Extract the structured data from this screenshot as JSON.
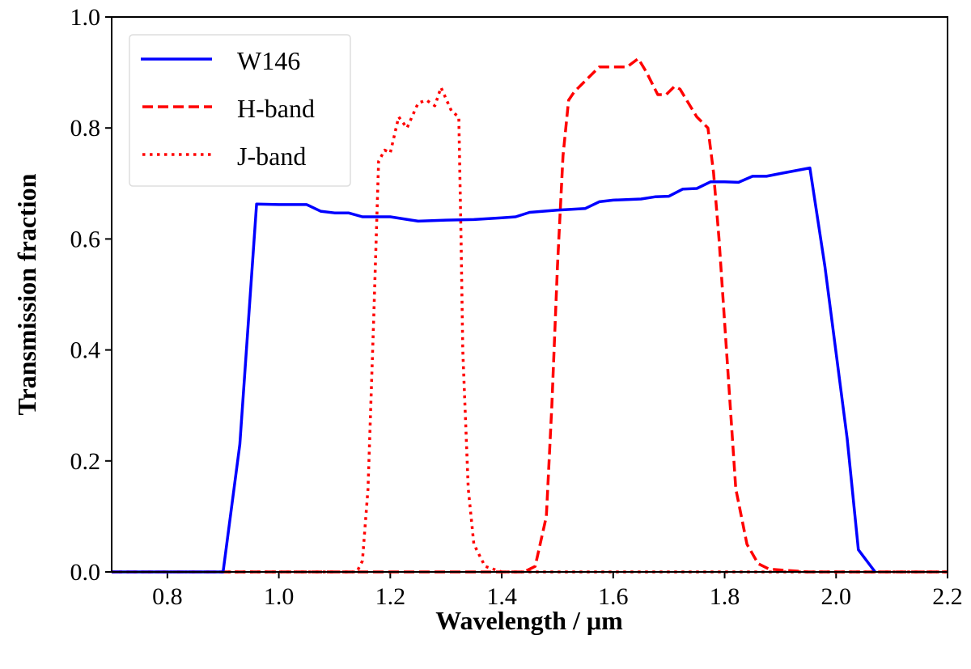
{
  "chart_data": {
    "type": "line",
    "title": "",
    "xlabel": "Wavelength / μm",
    "ylabel": "Transmission fraction",
    "xlim": [
      0.7,
      2.2
    ],
    "ylim": [
      0.0,
      1.0
    ],
    "xticks": [
      "0.8",
      "1.0",
      "1.2",
      "1.4",
      "1.6",
      "1.8",
      "2.0",
      "2.2"
    ],
    "yticks": [
      "0.0",
      "0.2",
      "0.4",
      "0.6",
      "0.8",
      "1.0"
    ],
    "grid": false,
    "legend_position": "top-left",
    "series": [
      {
        "name": "W146",
        "color": "#0000ff",
        "style": "solid",
        "x": [
          0.7,
          0.9,
          0.93,
          0.96,
          1.0,
          1.05,
          1.075,
          1.1,
          1.125,
          1.15,
          1.175,
          1.2,
          1.25,
          1.3,
          1.35,
          1.4,
          1.425,
          1.45,
          1.5,
          1.55,
          1.575,
          1.6,
          1.65,
          1.675,
          1.7,
          1.725,
          1.75,
          1.775,
          1.8,
          1.825,
          1.85,
          1.875,
          1.9,
          1.953,
          1.98,
          2.02,
          2.04,
          2.07
        ],
        "y": [
          0,
          0,
          0.23,
          0.663,
          0.662,
          0.662,
          0.65,
          0.647,
          0.647,
          0.64,
          0.64,
          0.64,
          0.632,
          0.634,
          0.635,
          0.638,
          0.64,
          0.648,
          0.652,
          0.655,
          0.667,
          0.67,
          0.672,
          0.676,
          0.677,
          0.69,
          0.691,
          0.703,
          0.703,
          0.702,
          0.713,
          0.713,
          0.718,
          0.728,
          0.55,
          0.24,
          0.04,
          0.0
        ]
      },
      {
        "name": "H-band",
        "color": "#ff0000",
        "style": "dashed",
        "x": [
          0.7,
          1.44,
          1.46,
          1.48,
          1.49,
          1.5,
          1.51,
          1.52,
          1.53,
          1.55,
          1.575,
          1.6,
          1.625,
          1.645,
          1.66,
          1.68,
          1.695,
          1.71,
          1.72,
          1.75,
          1.77,
          1.78,
          1.79,
          1.8,
          1.81,
          1.82,
          1.84,
          1.86,
          1.88,
          1.95,
          2.2
        ],
        "y": [
          0,
          0,
          0.01,
          0.1,
          0.3,
          0.55,
          0.75,
          0.85,
          0.865,
          0.885,
          0.91,
          0.91,
          0.91,
          0.925,
          0.9,
          0.86,
          0.86,
          0.875,
          0.87,
          0.82,
          0.8,
          0.72,
          0.6,
          0.45,
          0.3,
          0.15,
          0.05,
          0.015,
          0.005,
          0,
          0
        ]
      },
      {
        "name": "J-band",
        "color": "#ff0000",
        "style": "dotted",
        "x": [
          0.7,
          1.14,
          1.15,
          1.16,
          1.17,
          1.179,
          1.19,
          1.2,
          1.215,
          1.23,
          1.25,
          1.265,
          1.28,
          1.291,
          1.31,
          1.323,
          1.327,
          1.33,
          1.34,
          1.35,
          1.37,
          1.4,
          2.2
        ],
        "y": [
          0,
          0,
          0.02,
          0.15,
          0.45,
          0.74,
          0.76,
          0.755,
          0.82,
          0.8,
          0.845,
          0.85,
          0.84,
          0.873,
          0.83,
          0.82,
          0.6,
          0.4,
          0.15,
          0.05,
          0.01,
          0,
          0
        ]
      }
    ]
  }
}
